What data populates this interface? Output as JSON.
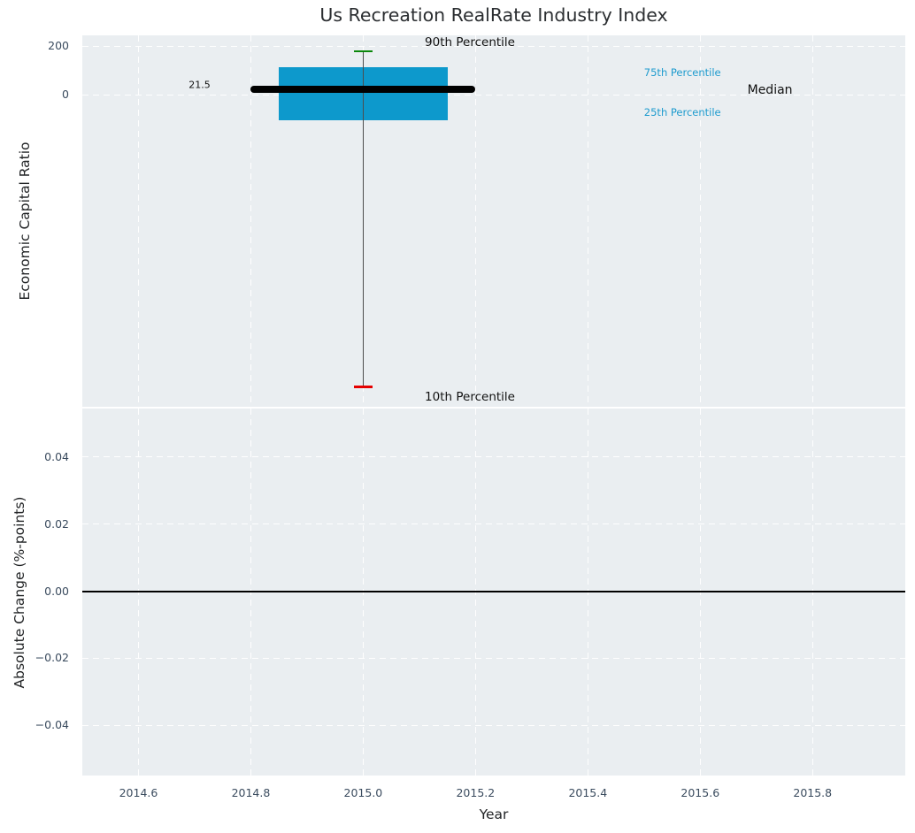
{
  "chart_data": [
    {
      "type": "box",
      "title": "Us Recreation RealRate Industry Index",
      "ylabel": "Economic Capital Ratio",
      "xlim": [
        2014.5,
        2015.965
      ],
      "ylim": [
        -1282,
        245
      ],
      "grid": "white dashed, on",
      "legend": "none",
      "x_center": 2015.0,
      "box_left": 2014.85,
      "box_right": 2015.15,
      "median_line_left": 2014.8,
      "median_line_right": 2015.2,
      "cap_half_width": 0.0165,
      "stats": {
        "p90": 180,
        "p75": 115,
        "median": 21.5,
        "p25": -105,
        "p10": -1200
      },
      "yticks": {
        "values": [
          200,
          0
        ],
        "labels": [
          "200",
          "0"
        ]
      },
      "colors": {
        "box_fill": "#0D99CC",
        "whisker": "#4D4D4D",
        "cap_top": "#0A870A",
        "cap_bottom": "#E50000",
        "median_line": "#000000",
        "axes_background": "#EAEEF1",
        "grid": "#FFFFFF"
      },
      "annotations": {
        "p90": {
          "text": "90th Percentile",
          "x": 2015.19,
          "y": 216,
          "color": "#111111",
          "size": 13.5,
          "anchor": "middle"
        },
        "p75": {
          "text": "75th Percentile",
          "x": 2015.5,
          "y": 93,
          "color": "#1E9BCE",
          "size": 11.5,
          "anchor": "start"
        },
        "median": {
          "text": "Median",
          "x": 2015.684,
          "y": 20,
          "color": "#111111",
          "size": 14,
          "anchor": "start"
        },
        "p25": {
          "text": "25th Percentile",
          "x": 2015.5,
          "y": -71,
          "color": "#1E9BCE",
          "size": 11.5,
          "anchor": "start"
        },
        "p10": {
          "text": "10th Percentile",
          "x": 2015.19,
          "y": -1242,
          "color": "#111111",
          "size": 13.5,
          "anchor": "middle"
        },
        "median_value": {
          "text": "21.5",
          "x": 2014.728,
          "y": 42,
          "color": "#111111",
          "size": 11,
          "anchor": "end"
        }
      }
    },
    {
      "type": "line",
      "ylabel": "Absolute Change (%-points)",
      "xlabel": "Year",
      "xlim": [
        2014.5,
        2015.965
      ],
      "ylim": [
        -0.055,
        0.0545
      ],
      "zero_line": 0.0,
      "series": [],
      "yticks": {
        "values": [
          0.04,
          0.02,
          0.0,
          -0.02,
          -0.04
        ],
        "labels": [
          "0.04",
          "0.02",
          "0.00",
          "−0.02",
          "−0.04"
        ]
      },
      "xticks": {
        "values": [
          2014.6,
          2014.8,
          2015.0,
          2015.2,
          2015.4,
          2015.6,
          2015.8
        ],
        "labels": [
          "2014.6",
          "2014.8",
          "2015.0",
          "2015.2",
          "2015.4",
          "2015.6",
          "2015.8"
        ]
      }
    }
  ]
}
